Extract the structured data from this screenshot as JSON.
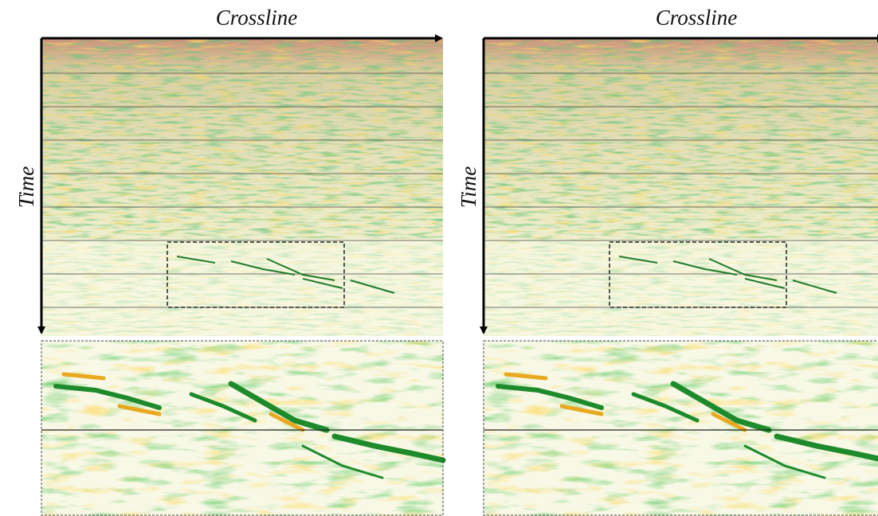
{
  "panels": [
    {
      "x_label": "Crossline",
      "y_label": "Time"
    },
    {
      "x_label": "Crossline",
      "y_label": "Time"
    }
  ]
}
